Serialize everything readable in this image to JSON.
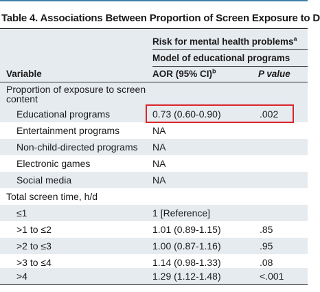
{
  "table": {
    "title": "Table 4. Associations Between Proportion of Screen Exposure to D",
    "header": {
      "group_label": "Risk for mental health problems",
      "group_marker": "a",
      "model_label": "Model of educational programs",
      "variable_label": "Variable",
      "aor_label": "AOR (95% CI)",
      "aor_marker": "b",
      "p_label": "P value"
    },
    "sections": [
      {
        "label": "Proportion of exposure to screen content",
        "rows": [
          {
            "variable": "Educational programs",
            "aor": "0.73 (0.60-0.90)",
            "p": ".002",
            "highlighted": true
          },
          {
            "variable": "Entertainment programs",
            "aor": "NA",
            "p": ""
          },
          {
            "variable": "Non-child-directed programs",
            "aor": "NA",
            "p": ""
          },
          {
            "variable": "Electronic games",
            "aor": "NA",
            "p": ""
          },
          {
            "variable": "Social media",
            "aor": "NA",
            "p": ""
          }
        ]
      },
      {
        "label": "Total screen time, h/d",
        "rows": [
          {
            "variable": "≤1",
            "aor": "1 [Reference]",
            "p": ""
          },
          {
            "variable": ">1 to ≤2",
            "aor": "1.01 (0.89-1.15)",
            "p": ".85"
          },
          {
            "variable": ">2 to ≤3",
            "aor": "1.00 (0.87-1.16)",
            "p": ".95"
          },
          {
            "variable": ">3 to ≤4",
            "aor": "1.14 (0.98-1.33)",
            "p": ".08"
          },
          {
            "variable": ">4",
            "aor": "1.29 (1.12-1.48)",
            "p": "<.001"
          }
        ]
      }
    ],
    "colors": {
      "rule_accent": "#3d7fa6",
      "shade": "#e6ebf0",
      "highlight": "#d9252a"
    }
  }
}
